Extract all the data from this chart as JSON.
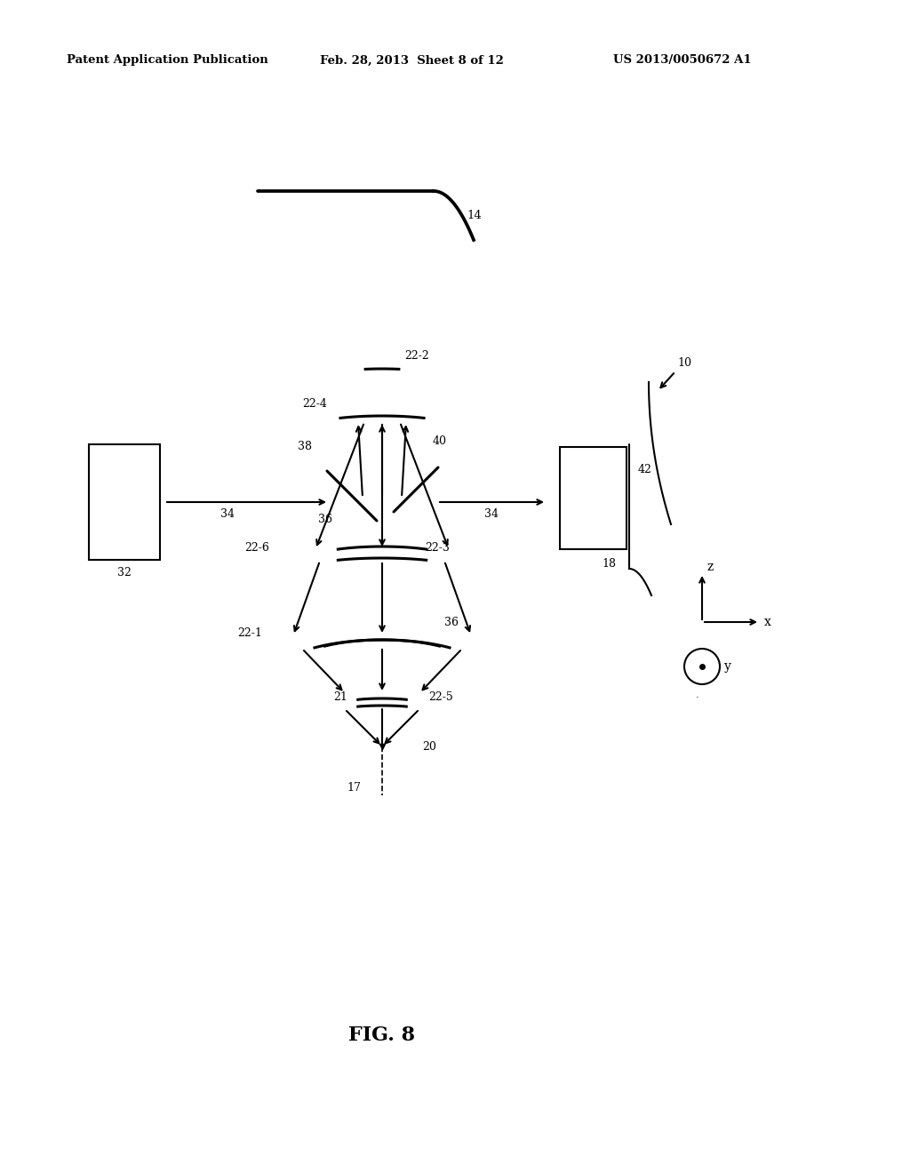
{
  "bg_color": "#ffffff",
  "header_left": "Patent Application Publication",
  "header_mid": "Feb. 28, 2013  Sheet 8 of 12",
  "header_right": "US 2013/0050672 A1",
  "fig_label": "FIG. 8"
}
